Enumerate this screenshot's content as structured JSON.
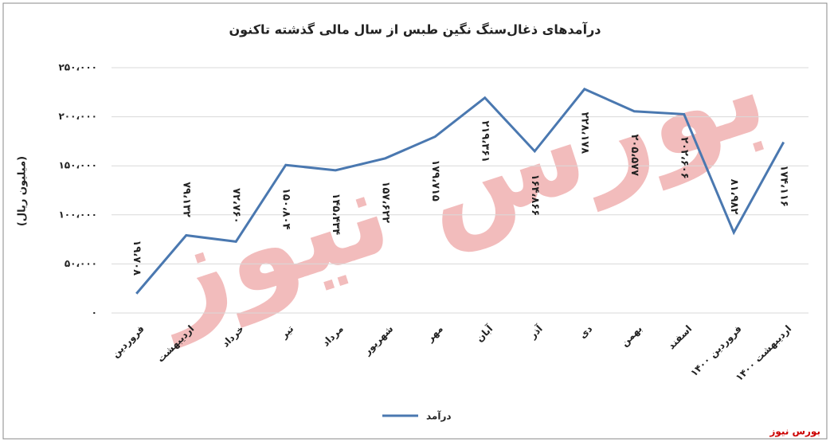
{
  "chart_data": {
    "type": "line",
    "title": "درآمدهای ذغال‌سنگ نگین طبس از سال مالی گذشته تاکنون",
    "y_label": "(میلیون ریال)",
    "categories": [
      "فروردین",
      "اردیبهشت",
      "خرداد",
      "تیر",
      "مرداد",
      "شهریور",
      "مهر",
      "آبان",
      "آذر",
      "دی",
      "بهمن",
      "اسفند",
      "فروردین ۱۴۰۰",
      "اردیبهشت ۱۴۰۰"
    ],
    "series": [
      {
        "name": "درآمد",
        "color": "#4a78b0",
        "values": [
          19708,
          79132,
          72760,
          150804,
          145434,
          157622,
          179715,
          219361,
          164866,
          228178,
          205577,
          202606,
          81982,
          174116
        ],
        "value_labels": [
          "۱۹،۷۰۸",
          "۷۹،۱۳۲",
          "۷۲،۷۶۰",
          "۱۵۰،۸۰۴",
          "۱۴۵،۴۳۴",
          "۱۵۷،۶۲۲",
          "۱۷۹،۷۱۵",
          "۲۱۹،۳۶۱",
          "۱۶۴،۸۶۶",
          "۲۲۸،۱۷۸",
          "۲۰۵،۵۷۷",
          "۲۰۲،۶۰۶",
          "۸۱،۹۸۲",
          "۱۷۴،۱۱۶"
        ]
      }
    ],
    "ylim": [
      0,
      250000
    ],
    "yticks": [
      {
        "value": 0,
        "label": "۰"
      },
      {
        "value": 50000,
        "label": "۵۰،۰۰۰"
      },
      {
        "value": 100000,
        "label": "۱۰۰،۰۰۰"
      },
      {
        "value": 150000,
        "label": "۱۵۰،۰۰۰"
      },
      {
        "value": 200000,
        "label": "۲۰۰،۰۰۰"
      },
      {
        "value": 250000,
        "label": "۲۵۰،۰۰۰"
      }
    ],
    "grid": true,
    "legend": "bottom",
    "watermark": "بورس نیوز",
    "source": "بورس نیوز"
  }
}
